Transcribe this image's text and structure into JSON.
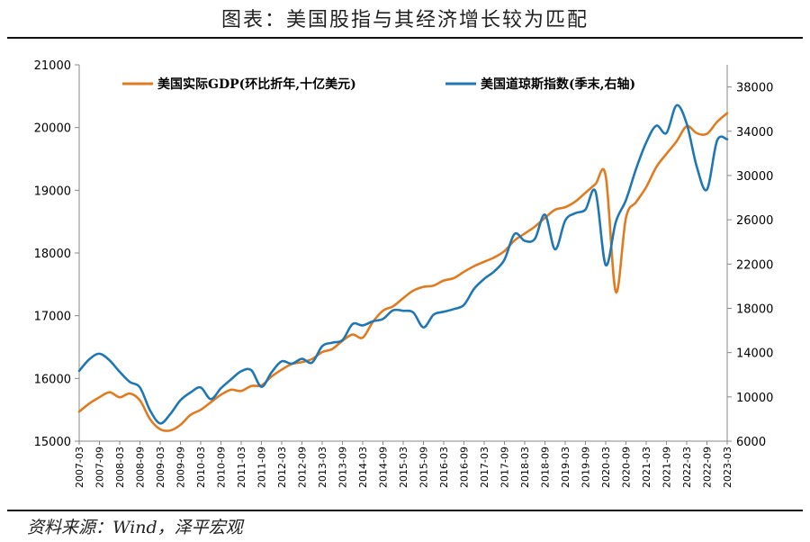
{
  "header": {
    "title": "图表：美国股指与其经济增长较为匹配"
  },
  "footer": {
    "source": "资料来源：Wind，泽平宏观"
  },
  "chart_data": {
    "type": "line",
    "title": "图表：美国股指与其经济增长较为匹配",
    "x": [
      "2007-03",
      "2007-09",
      "2008-03",
      "2008-09",
      "2009-03",
      "2009-09",
      "2010-03",
      "2010-09",
      "2011-03",
      "2011-09",
      "2012-03",
      "2012-09",
      "2013-03",
      "2013-09",
      "2014-03",
      "2014-09",
      "2015-03",
      "2015-09",
      "2016-03",
      "2016-09",
      "2017-03",
      "2017-09",
      "2018-03",
      "2018-09",
      "2019-03",
      "2019-09",
      "2020-03",
      "2020-09",
      "2021-03",
      "2021-09",
      "2022-03",
      "2022-09",
      "2023-03"
    ],
    "x_tick_labels": [
      "2007-03",
      "2007-09",
      "2008-03",
      "2008-09",
      "2009-03",
      "2009-09",
      "2010-03",
      "2010-09",
      "2011-03",
      "2011-09",
      "2012-03",
      "2012-09",
      "2013-03",
      "2013-09",
      "2014-03",
      "2014-09",
      "2015-03",
      "2015-09",
      "2016-03",
      "2016-09",
      "2017-03",
      "2017-09",
      "2018-03",
      "2018-09",
      "2019-03",
      "2019-09",
      "2020-03",
      "2020-09",
      "2021-03",
      "2021-09",
      "2022-03",
      "2022-09",
      "2023-03"
    ],
    "y_left": {
      "ylim": [
        15000,
        21000
      ],
      "ticks": [
        15000,
        16000,
        17000,
        18000,
        19000,
        20000,
        21000
      ]
    },
    "y_right": {
      "ylim": [
        6000,
        40000
      ],
      "ticks": [
        6000,
        10000,
        14000,
        18000,
        22000,
        26000,
        30000,
        34000,
        38000
      ]
    },
    "legend_position": "top",
    "grid": false,
    "series": [
      {
        "name": "美国实际GDP(环比折年,十亿美元)",
        "axis": "left",
        "color": "#E07B20",
        "x": [
          "2007-03",
          "2007-06",
          "2007-09",
          "2007-12",
          "2008-03",
          "2008-06",
          "2008-09",
          "2008-12",
          "2009-03",
          "2009-06",
          "2009-09",
          "2009-12",
          "2010-03",
          "2010-06",
          "2010-09",
          "2010-12",
          "2011-03",
          "2011-06",
          "2011-09",
          "2011-12",
          "2012-03",
          "2012-06",
          "2012-09",
          "2012-12",
          "2013-03",
          "2013-06",
          "2013-09",
          "2013-12",
          "2014-03",
          "2014-06",
          "2014-09",
          "2014-12",
          "2015-03",
          "2015-06",
          "2015-09",
          "2015-12",
          "2016-03",
          "2016-06",
          "2016-09",
          "2016-12",
          "2017-03",
          "2017-06",
          "2017-09",
          "2017-12",
          "2018-03",
          "2018-06",
          "2018-09",
          "2018-12",
          "2019-03",
          "2019-06",
          "2019-09",
          "2019-12",
          "2020-03",
          "2020-06",
          "2020-09",
          "2020-12",
          "2021-03",
          "2021-06",
          "2021-09",
          "2021-12",
          "2022-03",
          "2022-06",
          "2022-09",
          "2022-12",
          "2023-03"
        ],
        "values": [
          15470,
          15600,
          15700,
          15780,
          15700,
          15760,
          15650,
          15350,
          15190,
          15170,
          15260,
          15420,
          15500,
          15620,
          15740,
          15820,
          15800,
          15880,
          15890,
          16030,
          16140,
          16230,
          16260,
          16310,
          16420,
          16470,
          16600,
          16700,
          16650,
          16900,
          17080,
          17150,
          17280,
          17400,
          17460,
          17480,
          17560,
          17600,
          17700,
          17790,
          17860,
          17930,
          18030,
          18200,
          18310,
          18420,
          18560,
          18690,
          18730,
          18820,
          18960,
          19100,
          19230,
          17380,
          18560,
          18810,
          19050,
          19370,
          19580,
          19780,
          20020,
          19910,
          19900,
          20090,
          20230
        ]
      },
      {
        "name": "美国道琼斯指数(季末,右轴)",
        "axis": "right",
        "color": "#1F77B4",
        "x": [
          "2007-03",
          "2007-06",
          "2007-09",
          "2007-12",
          "2008-03",
          "2008-06",
          "2008-09",
          "2008-12",
          "2009-03",
          "2009-06",
          "2009-09",
          "2009-12",
          "2010-03",
          "2010-06",
          "2010-09",
          "2010-12",
          "2011-03",
          "2011-06",
          "2011-09",
          "2011-12",
          "2012-03",
          "2012-06",
          "2012-09",
          "2012-12",
          "2013-03",
          "2013-06",
          "2013-09",
          "2013-12",
          "2014-03",
          "2014-06",
          "2014-09",
          "2014-12",
          "2015-03",
          "2015-06",
          "2015-09",
          "2015-12",
          "2016-03",
          "2016-06",
          "2016-09",
          "2016-12",
          "2017-03",
          "2017-06",
          "2017-09",
          "2017-12",
          "2018-03",
          "2018-06",
          "2018-09",
          "2018-12",
          "2019-03",
          "2019-06",
          "2019-09",
          "2019-12",
          "2020-03",
          "2020-06",
          "2020-09",
          "2020-12",
          "2021-03",
          "2021-06",
          "2021-09",
          "2021-12",
          "2022-03",
          "2022-06",
          "2022-09",
          "2022-12",
          "2023-03"
        ],
        "values": [
          12350,
          13400,
          13900,
          13300,
          12260,
          11350,
          10850,
          8780,
          7600,
          8450,
          9700,
          10400,
          10850,
          9800,
          10780,
          11580,
          12320,
          12410,
          10910,
          12220,
          13210,
          13000,
          13440,
          13100,
          14580,
          14900,
          15130,
          16580,
          16460,
          16830,
          17040,
          17820,
          17780,
          17620,
          16280,
          17430,
          17690,
          17930,
          18310,
          19760,
          20660,
          21350,
          22400,
          24720,
          24100,
          24270,
          26460,
          23330,
          25930,
          26600,
          26920,
          28540,
          21920,
          25810,
          27780,
          30600,
          32980,
          34500,
          33840,
          36340,
          34680,
          30780,
          28730,
          33150,
          33270
        ]
      }
    ]
  }
}
